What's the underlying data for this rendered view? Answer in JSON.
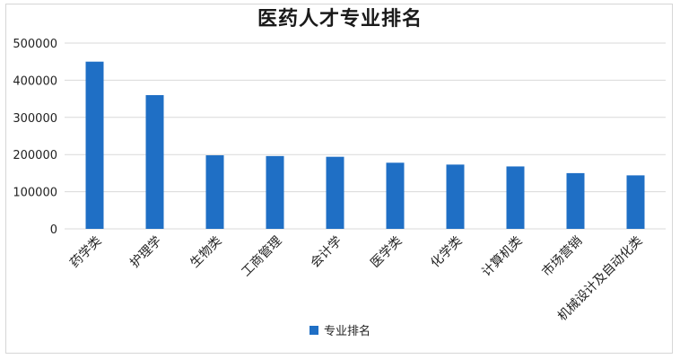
{
  "chart_data": {
    "type": "bar",
    "title": "医药人才专业排名",
    "categories": [
      "药学类",
      "护理学",
      "生物类",
      "工商管理",
      "会计学",
      "医学类",
      "化学类",
      "计算机类",
      "市场营销",
      "机械设计及自动化类"
    ],
    "series": [
      {
        "name": "专业排名",
        "values": [
          450000,
          360000,
          198000,
          196000,
          194000,
          178000,
          173000,
          168000,
          150000,
          144000
        ]
      }
    ],
    "ylim": [
      0,
      500000
    ],
    "yticks": [
      "0",
      "100000",
      "200000",
      "300000",
      "400000",
      "500000"
    ],
    "grid": true,
    "legend": "bottom",
    "colors": {
      "bar": "#1f6fc5",
      "grid": "#d9d9d9"
    }
  }
}
